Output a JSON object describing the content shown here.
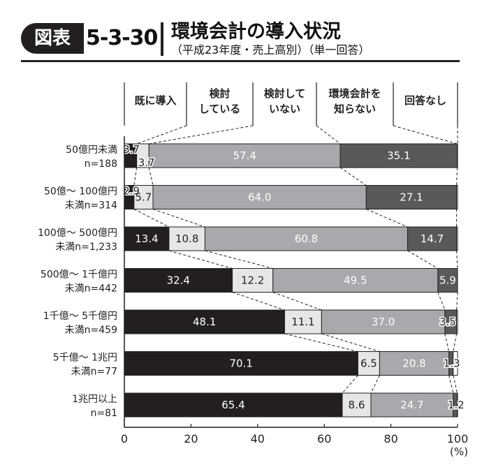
{
  "header": {
    "badge": "図表",
    "figure_number": "5-3-30",
    "title": "環境会計の導入状況",
    "subtitle": "（平成23年度・売上高別）（単一回答）"
  },
  "colors": {
    "s1": "#231f20",
    "s2": "#e6e6e6",
    "s3": "#a7a9ac",
    "s4": "#58595b",
    "axis": "#231f20"
  },
  "chart_data": {
    "type": "bar",
    "orientation": "horizontal",
    "stacked": true,
    "categories": [
      [
        "50億円未満",
        "n=188"
      ],
      [
        "50億～ 100億円",
        "未満n=314"
      ],
      [
        "100億～ 500億円",
        "未満n=1,233"
      ],
      [
        "500億～ 1千億円",
        "未満n=442"
      ],
      [
        "1千億～ 5千億円",
        "未満n=459"
      ],
      [
        "5千億～ 1兆円",
        "未満n=77"
      ],
      [
        "1兆円以上",
        "n=81"
      ]
    ],
    "series": [
      {
        "name": "既に導入",
        "legend_lines": [
          "既に導入"
        ],
        "values": [
          3.7,
          2.9,
          13.4,
          32.4,
          48.1,
          70.1,
          65.4
        ]
      },
      {
        "name": "検討している",
        "legend_lines": [
          "検討",
          "している"
        ],
        "values": [
          3.7,
          5.7,
          10.8,
          12.2,
          11.1,
          6.5,
          8.6
        ]
      },
      {
        "name": "検討していない",
        "legend_lines": [
          "検討して",
          "いない"
        ],
        "values": [
          57.4,
          64.0,
          60.8,
          49.5,
          37.0,
          20.8,
          24.7
        ]
      },
      {
        "name": "環境会計を知らない",
        "legend_lines": [
          "環境会計を",
          "知らない"
        ],
        "values": [
          35.1,
          27.1,
          14.7,
          5.9,
          3.5,
          1.3,
          1.2
        ]
      },
      {
        "name": "回答なし",
        "legend_lines": [
          "回答なし"
        ],
        "values": [
          0.1,
          0.3,
          0.3,
          0.0,
          0.3,
          1.3,
          0.1
        ]
      }
    ],
    "data_labels": [
      [
        "3.7",
        "3.7",
        "57.4",
        "35.1",
        ""
      ],
      [
        "2.9",
        "5.7",
        "64.0",
        "27.1",
        ""
      ],
      [
        "13.4",
        "10.8",
        "60.8",
        "14.7",
        ""
      ],
      [
        "32.4",
        "12.2",
        "49.5",
        "5.9",
        ""
      ],
      [
        "48.1",
        "11.1",
        "37.0",
        "3.5",
        ""
      ],
      [
        "70.1",
        "6.5",
        "20.8",
        "1.3",
        ""
      ],
      [
        "65.4",
        "8.6",
        "24.7",
        "1.2",
        ""
      ]
    ],
    "x_ticks": [
      "0",
      "20",
      "40",
      "60",
      "80",
      "100"
    ],
    "x_unit": "(%)",
    "xlim": [
      0,
      100
    ],
    "grid": false,
    "legend_position": "top"
  }
}
